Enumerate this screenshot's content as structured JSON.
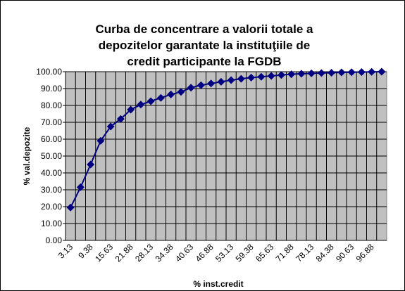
{
  "chart_data": {
    "type": "line",
    "title": [
      "Curba de concentrare a valorii totale a",
      "depozitelor garantate la instituţiile de",
      "credit participante la FGDB"
    ],
    "x_label": "% inst.credit",
    "y_label": "% val.depozite",
    "categories": [
      "3.13",
      null,
      "9.38",
      null,
      "15.63",
      null,
      "21.88",
      null,
      "28.13",
      null,
      "34.38",
      null,
      "40.63",
      null,
      "46.88",
      null,
      "53.13",
      null,
      "59.38",
      null,
      "65.63",
      null,
      "71.88",
      null,
      "78.13",
      null,
      "84.38",
      null,
      "90.63",
      null,
      "96.88",
      null
    ],
    "series": [
      {
        "name": "% val.depozite",
        "color": "#000080",
        "values": [
          19.5,
          31.5,
          45,
          59,
          67.5,
          72,
          77.5,
          80.5,
          82.5,
          84.5,
          86.5,
          88,
          90.5,
          92,
          93,
          94,
          95,
          95.8,
          96.5,
          97,
          97.5,
          98,
          98.5,
          98.8,
          99,
          99.2,
          99.4,
          99.6,
          99.7,
          99.8,
          99.9,
          100
        ]
      }
    ],
    "ylim": [
      0,
      100
    ],
    "yticks": [
      {
        "value": 0,
        "label": "0.00"
      },
      {
        "value": 10,
        "label": "10.00"
      },
      {
        "value": 20,
        "label": "20.00"
      },
      {
        "value": 30,
        "label": "30.00"
      },
      {
        "value": 40,
        "label": "40.00"
      },
      {
        "value": 50,
        "label": "50.00"
      },
      {
        "value": 60,
        "label": "60.00"
      },
      {
        "value": 70,
        "label": "70.00"
      },
      {
        "value": 80,
        "label": "80.00"
      },
      {
        "value": 90,
        "label": "90.00"
      },
      {
        "value": 100,
        "label": "100.00"
      }
    ],
    "grid": true,
    "plot_background": "#c0c0c0"
  }
}
